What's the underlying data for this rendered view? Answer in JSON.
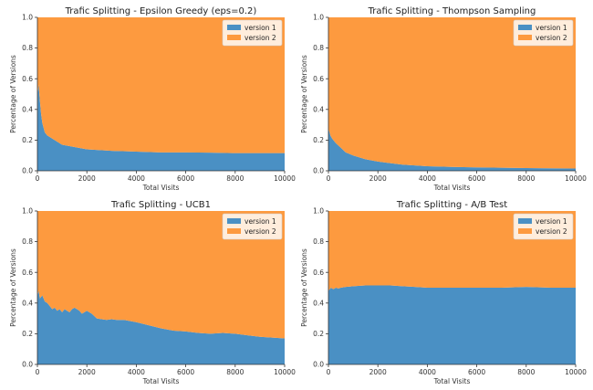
{
  "colors": {
    "version1": "#4a90c4",
    "version2": "#fd9a3f"
  },
  "chart_data": [
    {
      "type": "area",
      "title": "Trafic Splitting - Epsilon Greedy (eps=0.2)",
      "xlabel": "Total Visits",
      "ylabel": "Percentage of Versions",
      "xlim": [
        0,
        10000
      ],
      "ylim": [
        0,
        1.0
      ],
      "xticks": [
        "0",
        "2000",
        "4000",
        "6000",
        "8000",
        "10000"
      ],
      "yticks": [
        "0.0",
        "0.2",
        "0.4",
        "0.6",
        "0.8",
        "1.0"
      ],
      "legend": [
        "version 1",
        "version 2"
      ],
      "legend_position": "top-right",
      "stacked": true,
      "x": [
        0,
        20,
        50,
        100,
        150,
        200,
        300,
        400,
        500,
        600,
        800,
        1000,
        1500,
        2000,
        3000,
        4000,
        5000,
        6000,
        7000,
        8000,
        9000,
        10000
      ],
      "series": [
        {
          "name": "version 1",
          "values": [
            0.33,
            0.52,
            0.56,
            0.46,
            0.37,
            0.31,
            0.25,
            0.23,
            0.22,
            0.21,
            0.19,
            0.17,
            0.155,
            0.14,
            0.13,
            0.125,
            0.12,
            0.12,
            0.118,
            0.115,
            0.115,
            0.115
          ]
        },
        {
          "name": "version 2",
          "values": [
            0.67,
            0.48,
            0.44,
            0.54,
            0.63,
            0.69,
            0.75,
            0.77,
            0.78,
            0.79,
            0.81,
            0.83,
            0.845,
            0.86,
            0.87,
            0.875,
            0.88,
            0.88,
            0.882,
            0.885,
            0.885,
            0.885
          ]
        }
      ]
    },
    {
      "type": "area",
      "title": "Trafic Splitting - Thompson Sampling",
      "xlabel": "Total Visits",
      "ylabel": "Percentage of Versions",
      "xlim": [
        0,
        10000
      ],
      "ylim": [
        0,
        1.0
      ],
      "xticks": [
        "0",
        "2000",
        "4000",
        "6000",
        "8000",
        "10000"
      ],
      "yticks": [
        "0.0",
        "0.2",
        "0.4",
        "0.6",
        "0.8",
        "1.0"
      ],
      "legend": [
        "version 1",
        "version 2"
      ],
      "legend_position": "top-right",
      "stacked": true,
      "x": [
        0,
        30,
        80,
        150,
        300,
        500,
        700,
        1000,
        1500,
        2000,
        2500,
        3000,
        4000,
        5000,
        6000,
        7000,
        8000,
        9000,
        10000
      ],
      "series": [
        {
          "name": "version 1",
          "values": [
            0.27,
            0.26,
            0.23,
            0.21,
            0.18,
            0.15,
            0.12,
            0.1,
            0.075,
            0.06,
            0.05,
            0.04,
            0.03,
            0.025,
            0.022,
            0.02,
            0.018,
            0.016,
            0.015
          ]
        },
        {
          "name": "version 2",
          "values": [
            0.73,
            0.74,
            0.77,
            0.79,
            0.82,
            0.85,
            0.88,
            0.9,
            0.925,
            0.94,
            0.95,
            0.96,
            0.97,
            0.975,
            0.978,
            0.98,
            0.982,
            0.984,
            0.985
          ]
        }
      ]
    },
    {
      "type": "area",
      "title": "Trafic Splitting - UCB1",
      "xlabel": "Total Visits",
      "ylabel": "Percentage of Versions",
      "xlim": [
        0,
        10000
      ],
      "ylim": [
        0,
        1.0
      ],
      "xticks": [
        "0",
        "2000",
        "4000",
        "6000",
        "8000",
        "10000"
      ],
      "yticks": [
        "0.0",
        "0.2",
        "0.4",
        "0.6",
        "0.8",
        "1.0"
      ],
      "legend": [
        "version 1",
        "version 2"
      ],
      "legend_position": "top-right",
      "stacked": true,
      "x": [
        0,
        50,
        100,
        200,
        300,
        400,
        500,
        600,
        700,
        800,
        900,
        1000,
        1100,
        1200,
        1300,
        1400,
        1500,
        1600,
        1700,
        1800,
        1900,
        2000,
        2200,
        2400,
        2600,
        2800,
        3000,
        3200,
        3500,
        4000,
        4500,
        5000,
        5500,
        6000,
        6500,
        7000,
        7500,
        8000,
        8500,
        9000,
        9500,
        10000
      ],
      "series": [
        {
          "name": "version 1",
          "values": [
            0.45,
            0.48,
            0.43,
            0.45,
            0.41,
            0.4,
            0.38,
            0.36,
            0.37,
            0.35,
            0.36,
            0.34,
            0.36,
            0.35,
            0.34,
            0.36,
            0.37,
            0.36,
            0.35,
            0.33,
            0.34,
            0.35,
            0.33,
            0.3,
            0.295,
            0.29,
            0.295,
            0.29,
            0.29,
            0.275,
            0.255,
            0.235,
            0.22,
            0.215,
            0.205,
            0.2,
            0.205,
            0.2,
            0.19,
            0.18,
            0.175,
            0.17
          ]
        },
        {
          "name": "version 2",
          "values": [
            0.55,
            0.52,
            0.57,
            0.55,
            0.59,
            0.6,
            0.62,
            0.64,
            0.63,
            0.65,
            0.64,
            0.66,
            0.64,
            0.65,
            0.66,
            0.64,
            0.63,
            0.64,
            0.65,
            0.67,
            0.66,
            0.65,
            0.67,
            0.7,
            0.705,
            0.71,
            0.705,
            0.71,
            0.71,
            0.725,
            0.745,
            0.765,
            0.78,
            0.785,
            0.795,
            0.8,
            0.795,
            0.8,
            0.81,
            0.82,
            0.825,
            0.83
          ]
        }
      ]
    },
    {
      "type": "area",
      "title": "Trafic Splitting - A/B Test",
      "xlabel": "Total Visits",
      "ylabel": "Percentage of Versions",
      "xlim": [
        0,
        10000
      ],
      "ylim": [
        0,
        1.0
      ],
      "xticks": [
        "0",
        "2000",
        "4000",
        "6000",
        "8000",
        "10000"
      ],
      "yticks": [
        "0.0",
        "0.2",
        "0.4",
        "0.6",
        "0.8",
        "1.0"
      ],
      "legend": [
        "version 1",
        "version 2"
      ],
      "legend_position": "top-right",
      "stacked": true,
      "x": [
        0,
        100,
        200,
        300,
        400,
        500,
        700,
        1000,
        1500,
        2000,
        2500,
        3000,
        3500,
        4000,
        5000,
        6000,
        7000,
        8000,
        9000,
        10000
      ],
      "series": [
        {
          "name": "version 1",
          "values": [
            0.48,
            0.5,
            0.49,
            0.5,
            0.495,
            0.5,
            0.505,
            0.51,
            0.515,
            0.515,
            0.515,
            0.51,
            0.505,
            0.5,
            0.5,
            0.5,
            0.5,
            0.505,
            0.5,
            0.5
          ]
        },
        {
          "name": "version 2",
          "values": [
            0.52,
            0.5,
            0.51,
            0.5,
            0.505,
            0.5,
            0.495,
            0.49,
            0.485,
            0.485,
            0.485,
            0.49,
            0.495,
            0.5,
            0.5,
            0.5,
            0.5,
            0.495,
            0.5,
            0.5
          ]
        }
      ]
    }
  ]
}
